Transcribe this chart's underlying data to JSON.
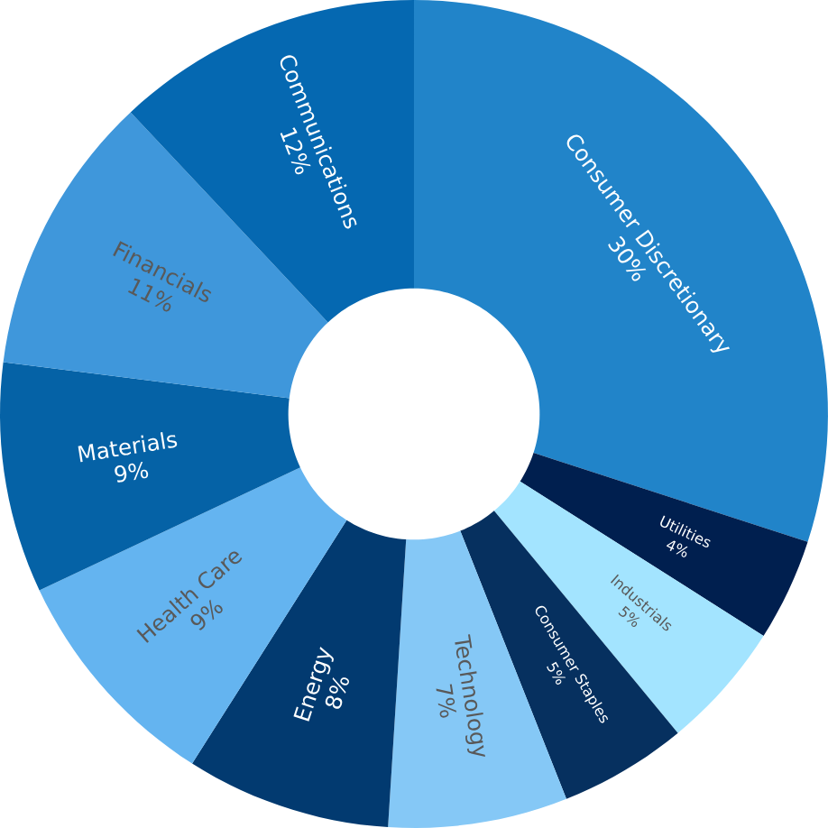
{
  "chart_data": {
    "type": "donut",
    "categories": [
      "Consumer Discretionary",
      "Utilities",
      "Industrials",
      "Consumer Staples",
      "Technology",
      "Energy",
      "Health Care",
      "Materials",
      "Financials",
      "Communications"
    ],
    "values": [
      30,
      4,
      5,
      5,
      7,
      8,
      9,
      9,
      11,
      12
    ],
    "value_labels": [
      "30%",
      "4%",
      "5%",
      "5%",
      "7%",
      "8%",
      "9%",
      "9%",
      "11%",
      "12%"
    ],
    "colors": [
      "#2184c9",
      "#001f4f",
      "#a3e4ff",
      "#06305f",
      "#85c8f6",
      "#023a70",
      "#64b4f0",
      "#0562a6",
      "#3f97db",
      "#0568b1"
    ]
  }
}
